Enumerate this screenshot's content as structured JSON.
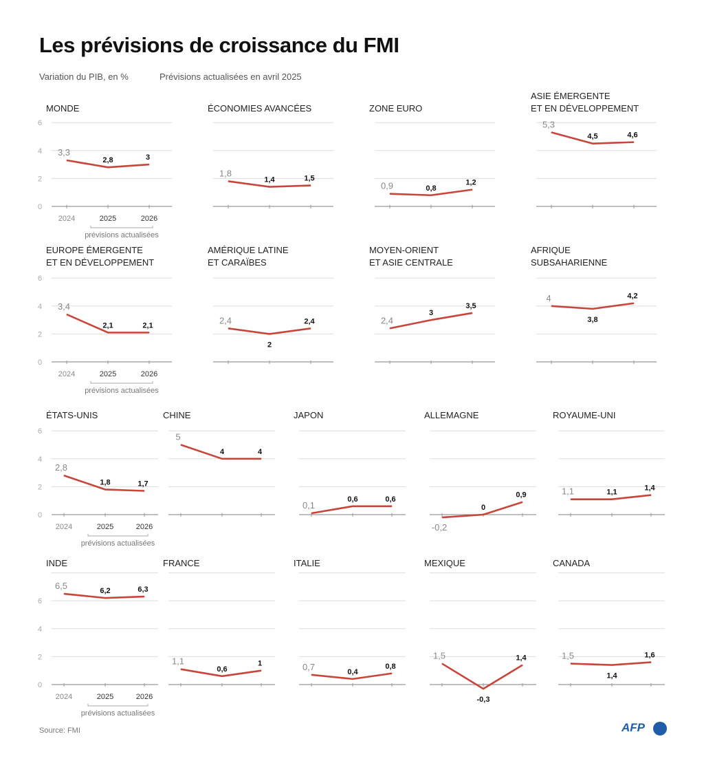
{
  "title": "Les prévisions de croissance du FMI",
  "subtitle_left": "Variation du PIB, en %",
  "subtitle_right": "Prévisions actualisées en avril 2025",
  "source": "Source: FMI",
  "logo": "AFP",
  "colors": {
    "line": "#c8453a",
    "grid": "#dddddd",
    "axis": "#999999"
  },
  "chart_data": {
    "type": "line",
    "x": [
      "2024",
      "2025",
      "2026"
    ],
    "forecast_label": "prévisions actualisées",
    "ylabel": "Variation du PIB, en %",
    "panels": [
      {
        "title": [
          "MONDE"
        ],
        "values": [
          3.3,
          2.8,
          3
        ],
        "labels": [
          "3,3",
          "2,8",
          "3"
        ],
        "label_pos": [
          "above",
          "above",
          "above"
        ],
        "ylim": [
          0,
          6
        ],
        "yticks": [
          "0",
          "2",
          "4",
          "6"
        ],
        "show_axis": true
      },
      {
        "title": [
          "ÉCONOMIES AVANCÉES"
        ],
        "values": [
          1.8,
          1.4,
          1.5
        ],
        "labels": [
          "1,8",
          "1,4",
          "1,5"
        ],
        "label_pos": [
          "above",
          "above",
          "above"
        ],
        "ylim": [
          0,
          6
        ]
      },
      {
        "title": [
          "ZONE EURO"
        ],
        "values": [
          0.9,
          0.8,
          1.2
        ],
        "labels": [
          "0,9",
          "0,8",
          "1,2"
        ],
        "label_pos": [
          "above",
          "above",
          "above"
        ],
        "ylim": [
          0,
          6
        ]
      },
      {
        "title": [
          "ASIE ÉMERGENTE",
          "ET EN DÉVELOPPEMENT"
        ],
        "values": [
          5.3,
          4.5,
          4.6
        ],
        "labels": [
          "5,3",
          "4,5",
          "4,6"
        ],
        "label_pos": [
          "above",
          "above",
          "above"
        ],
        "ylim": [
          0,
          6
        ]
      },
      {
        "title": [
          "EUROPE ÉMERGENTE",
          "ET EN DÉVELOPPEMENT"
        ],
        "values": [
          3.4,
          2.1,
          2.1
        ],
        "labels": [
          "3,4",
          "2,1",
          "2,1"
        ],
        "label_pos": [
          "above",
          "above",
          "above"
        ],
        "ylim": [
          0,
          6
        ],
        "yticks": [
          "0",
          "2",
          "4",
          "6"
        ],
        "show_axis": true
      },
      {
        "title": [
          "AMÉRIQUE LATINE",
          "ET CARAÏBES"
        ],
        "values": [
          2.4,
          2,
          2.4
        ],
        "labels": [
          "2,4",
          "2",
          "2,4"
        ],
        "label_pos": [
          "above",
          "below",
          "above"
        ],
        "ylim": [
          0,
          6
        ]
      },
      {
        "title": [
          "MOYEN-ORIENT",
          "ET ASIE CENTRALE"
        ],
        "values": [
          2.4,
          3,
          3.5
        ],
        "labels": [
          "2,4",
          "3",
          "3,5"
        ],
        "label_pos": [
          "above",
          "above",
          "above"
        ],
        "ylim": [
          0,
          6
        ]
      },
      {
        "title": [
          "AFRIQUE",
          "SUBSAHARIENNE"
        ],
        "values": [
          4,
          3.8,
          4.2
        ],
        "labels": [
          "4",
          "3,8",
          "4,2"
        ],
        "label_pos": [
          "above",
          "below",
          "above"
        ],
        "ylim": [
          0,
          6
        ]
      },
      {
        "title": [
          "ÉTATS-UNIS"
        ],
        "values": [
          2.8,
          1.8,
          1.7
        ],
        "labels": [
          "2,8",
          "1,8",
          "1,7"
        ],
        "label_pos": [
          "above",
          "above",
          "above"
        ],
        "ylim": [
          0,
          6
        ],
        "yticks": [
          "0",
          "2",
          "4",
          "6"
        ],
        "show_axis": true
      },
      {
        "title": [
          "CHINE"
        ],
        "values": [
          5,
          4,
          4
        ],
        "labels": [
          "5",
          "4",
          "4"
        ],
        "label_pos": [
          "above",
          "above",
          "above"
        ],
        "ylim": [
          0,
          6
        ]
      },
      {
        "title": [
          "JAPON"
        ],
        "values": [
          0.1,
          0.6,
          0.6
        ],
        "labels": [
          "0,1",
          "0,6",
          "0,6"
        ],
        "label_pos": [
          "above",
          "above",
          "above"
        ],
        "ylim": [
          0,
          6
        ]
      },
      {
        "title": [
          "ALLEMAGNE"
        ],
        "values": [
          -0.2,
          0,
          0.9
        ],
        "labels": [
          "-0,2",
          "0",
          "0,9"
        ],
        "label_pos": [
          "below",
          "above",
          "above"
        ],
        "ylim": [
          0,
          6
        ]
      },
      {
        "title": [
          "ROYAUME-UNI"
        ],
        "values": [
          1.1,
          1.1,
          1.4
        ],
        "labels": [
          "1,1",
          "1,1",
          "1,4"
        ],
        "label_pos": [
          "above",
          "above",
          "above"
        ],
        "ylim": [
          0,
          6
        ]
      },
      {
        "title": [
          "INDE"
        ],
        "values": [
          6.5,
          6.2,
          6.3
        ],
        "labels": [
          "6,5",
          "6,2",
          "6,3"
        ],
        "label_pos": [
          "above",
          "above",
          "above"
        ],
        "ylim": [
          0,
          8
        ],
        "yticks": [
          "0",
          "2",
          "4",
          "6"
        ],
        "show_axis": true
      },
      {
        "title": [
          "FRANCE"
        ],
        "values": [
          1.1,
          0.6,
          1
        ],
        "labels": [
          "1,1",
          "0,6",
          "1"
        ],
        "label_pos": [
          "above",
          "above",
          "above"
        ],
        "ylim": [
          0,
          8
        ]
      },
      {
        "title": [
          "ITALIE"
        ],
        "values": [
          0.7,
          0.4,
          0.8
        ],
        "labels": [
          "0,7",
          "0,4",
          "0,8"
        ],
        "label_pos": [
          "above",
          "above",
          "above"
        ],
        "ylim": [
          0,
          8
        ]
      },
      {
        "title": [
          "MEXIQUE"
        ],
        "values": [
          1.5,
          -0.3,
          1.4
        ],
        "labels": [
          "1,5",
          "-0,3",
          "1,4"
        ],
        "label_pos": [
          "above",
          "below",
          "above"
        ],
        "ylim": [
          0,
          8
        ]
      },
      {
        "title": [
          "CANADA"
        ],
        "values": [
          1.5,
          1.4,
          1.6
        ],
        "labels": [
          "1,5",
          "1,4",
          "1,6"
        ],
        "label_pos": [
          "above",
          "below",
          "above"
        ],
        "ylim": [
          0,
          8
        ]
      }
    ]
  }
}
